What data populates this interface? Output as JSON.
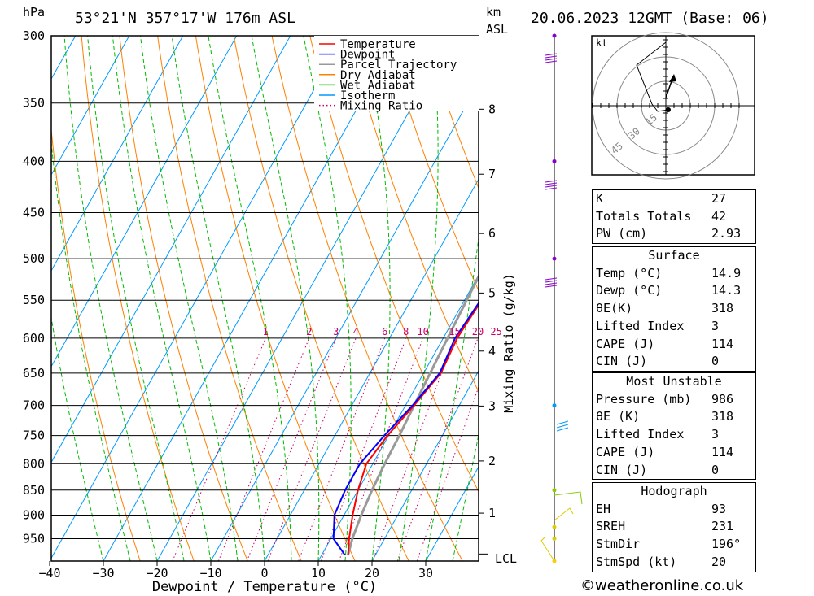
{
  "header": {
    "pressure_unit": "hPa",
    "location": "53°21'N  357°17'W  176m  ASL",
    "km_unit": "km",
    "asl_unit": "ASL",
    "datetime": "20.06.2023  12GMT  (Base: 06)"
  },
  "chart_data": {
    "type": "skew-t",
    "xlabel": "Dewpoint / Temperature (°C)",
    "ylabel_left": "hPa",
    "ylabel_right": "Mixing Ratio (g/kg)",
    "pressure_levels": [
      300,
      350,
      400,
      450,
      500,
      550,
      600,
      650,
      700,
      750,
      800,
      850,
      900,
      950
    ],
    "pressure_labels": [
      "300",
      "350",
      "400",
      "450",
      "500",
      "550",
      "600",
      "650",
      "700",
      "750",
      "800",
      "850",
      "900",
      "950"
    ],
    "temp_ticks": [
      -40,
      -30,
      -20,
      -10,
      0,
      10,
      20,
      30
    ],
    "temp_labels": [
      "−40",
      "−30",
      "−20",
      "−10",
      "0",
      "10",
      "20",
      "30"
    ],
    "km_ticks": [
      {
        "km": 8,
        "p": 355
      },
      {
        "km": 7,
        "p": 412
      },
      {
        "km": 6,
        "p": 472
      },
      {
        "km": 5,
        "p": 541
      },
      {
        "km": 4,
        "p": 618
      },
      {
        "km": 3,
        "p": 701
      },
      {
        "km": 2,
        "p": 795
      },
      {
        "km": 1,
        "p": 896
      }
    ],
    "lcl_label": "LCL",
    "lcl_pressure": 984,
    "mixing_ratio_labels": [
      "1",
      "2",
      "3",
      "4",
      "6",
      "8",
      "10",
      "15",
      "20",
      "25"
    ],
    "mixing_ratio_values": [
      1,
      2,
      3,
      4,
      6,
      8,
      10,
      15,
      20,
      25
    ],
    "legend": [
      {
        "name": "Temperature",
        "color": "#ff0000",
        "style": "solid"
      },
      {
        "name": "Dewpoint",
        "color": "#0000ff",
        "style": "solid"
      },
      {
        "name": "Parcel Trajectory",
        "color": "#999999",
        "style": "solid"
      },
      {
        "name": "Dry Adiabat",
        "color": "#ff8000",
        "style": "solid"
      },
      {
        "name": "Wet Adiabat",
        "color": "#00bb00",
        "style": "solid"
      },
      {
        "name": "Isotherm",
        "color": "#0099ff",
        "style": "solid"
      },
      {
        "name": "Mixing Ratio",
        "color": "#cc0066",
        "style": "dotted"
      }
    ],
    "legend_position": "top-right",
    "temperature": [
      {
        "p": 986,
        "t": 14.9
      },
      {
        "p": 950,
        "t": 13.4
      },
      {
        "p": 900,
        "t": 11.6
      },
      {
        "p": 850,
        "t": 10.0
      },
      {
        "p": 800,
        "t": 8.8
      },
      {
        "p": 750,
        "t": 9.8
      },
      {
        "p": 700,
        "t": 11.6
      },
      {
        "p": 650,
        "t": 13.2
      },
      {
        "p": 600,
        "t": 12.6
      },
      {
        "p": 550,
        "t": 13.2
      },
      {
        "p": 500,
        "t": 14.2
      },
      {
        "p": 450,
        "t": 15.2
      },
      {
        "p": 400,
        "t": 17.2
      },
      {
        "p": 350,
        "t": 19.4
      },
      {
        "p": 300,
        "t": 21.8
      }
    ],
    "dewpoint": [
      {
        "p": 986,
        "t": 14.3
      },
      {
        "p": 950,
        "t": 10.5
      },
      {
        "p": 900,
        "t": 8.2
      },
      {
        "p": 850,
        "t": 7.6
      },
      {
        "p": 800,
        "t": 7.6
      },
      {
        "p": 750,
        "t": 9.2
      },
      {
        "p": 700,
        "t": 11.3
      },
      {
        "p": 650,
        "t": 13.0
      },
      {
        "p": 600,
        "t": 12.2
      },
      {
        "p": 550,
        "t": 13.0
      },
      {
        "p": 500,
        "t": 14.0
      },
      {
        "p": 450,
        "t": 15.0
      },
      {
        "p": 400,
        "t": 17.0
      },
      {
        "p": 350,
        "t": 19.2
      },
      {
        "p": 300,
        "t": 21.6
      }
    ],
    "parcel": [
      {
        "p": 986,
        "t": 14.9
      },
      {
        "p": 950,
        "t": 14.0
      },
      {
        "p": 900,
        "t": 13.2
      },
      {
        "p": 850,
        "t": 12.6
      },
      {
        "p": 800,
        "t": 12.2
      },
      {
        "p": 750,
        "t": 12.0
      },
      {
        "p": 700,
        "t": 11.6
      },
      {
        "p": 650,
        "t": 11.2
      },
      {
        "p": 600,
        "t": 10.8
      },
      {
        "p": 550,
        "t": 10.4
      },
      {
        "p": 500,
        "t": 10.0
      },
      {
        "p": 450,
        "t": 9.6
      },
      {
        "p": 400,
        "t": 8.8
      },
      {
        "p": 350,
        "t": 7.4
      },
      {
        "p": 300,
        "t": 5.2
      }
    ]
  },
  "hodograph": {
    "unit_label": "kt",
    "ring_labels": [
      "15",
      "30",
      "45"
    ]
  },
  "indices": [
    {
      "label": "K",
      "value": "27"
    },
    {
      "label": "Totals Totals",
      "value": "42"
    },
    {
      "label": "PW (cm)",
      "value": "2.93"
    }
  ],
  "surface": {
    "title": "Surface",
    "rows": [
      {
        "label": "Temp (°C)",
        "value": "14.9"
      },
      {
        "label": "Dewp (°C)",
        "value": "14.3"
      },
      {
        "label": "θE(K)",
        "value": "318"
      },
      {
        "label": "Lifted Index",
        "value": "3"
      },
      {
        "label": "CAPE (J)",
        "value": "114"
      },
      {
        "label": "CIN (J)",
        "value": "0"
      }
    ]
  },
  "most_unstable": {
    "title": "Most Unstable",
    "rows": [
      {
        "label": "Pressure (mb)",
        "value": "986"
      },
      {
        "label": "θE (K)",
        "value": "318"
      },
      {
        "label": "Lifted Index",
        "value": "3"
      },
      {
        "label": "CAPE (J)",
        "value": "114"
      },
      {
        "label": "CIN (J)",
        "value": "0"
      }
    ]
  },
  "hodograph_table": {
    "title": "Hodograph",
    "rows": [
      {
        "label": "EH",
        "value": "93"
      },
      {
        "label": "SREH",
        "value": "231"
      },
      {
        "label": "StmDir",
        "value": "196°"
      },
      {
        "label": "StmSpd (kt)",
        "value": "20"
      }
    ]
  },
  "footer": {
    "copyright": "©weatheronline.co.uk"
  }
}
